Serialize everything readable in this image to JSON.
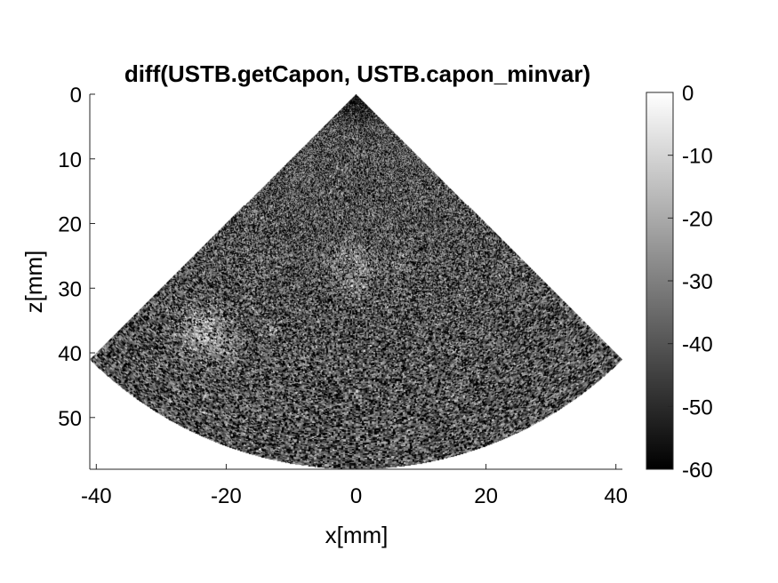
{
  "chart_data": {
    "type": "heatmap",
    "title": "diff(USTB.getCapon, USTB.capon_minvar)",
    "xlabel": "x[mm]",
    "ylabel": "z[mm]",
    "xlim": [
      -41,
      41
    ],
    "ylim": [
      0,
      58
    ],
    "y_reversed": true,
    "xticks": [
      -40,
      -20,
      0,
      20,
      40
    ],
    "xtick_labels": [
      "-40",
      "-20",
      "0",
      "20",
      "40"
    ],
    "yticks": [
      0,
      10,
      20,
      30,
      40,
      50
    ],
    "ytick_labels": [
      "0",
      "10",
      "20",
      "30",
      "40",
      "50"
    ],
    "colormap": "gray",
    "clim": [
      -60,
      0
    ],
    "colorbar_ticks": [
      0,
      -10,
      -20,
      -30,
      -40,
      -50,
      -60
    ],
    "colorbar_tick_labels": [
      "0",
      "-10",
      "-20",
      "-30",
      "-40",
      "-50",
      "-60"
    ],
    "sector": {
      "apex": [
        0,
        0
      ],
      "half_angle_deg": 45,
      "max_depth_mm": 58
    },
    "background_level_db": -35,
    "bright_regions": [
      {
        "x": -23,
        "z": 37,
        "radius_mm": 4,
        "level_db": -15
      },
      {
        "x": -13,
        "z": 36.5,
        "radius_mm": 1,
        "level_db": -18
      },
      {
        "x": 0,
        "z": 27,
        "radius_mm": 3.5,
        "level_db": -22
      },
      {
        "x": 7,
        "z": 26,
        "radius_mm": 1.5,
        "level_db": -25
      },
      {
        "x": -15,
        "z": 19,
        "radius_mm": 1,
        "level_db": -25
      }
    ],
    "grid": false
  },
  "colors": {
    "background": "#ffffff",
    "axis": "#262626",
    "image_min": "#000000",
    "image_max": "#ffffff"
  }
}
